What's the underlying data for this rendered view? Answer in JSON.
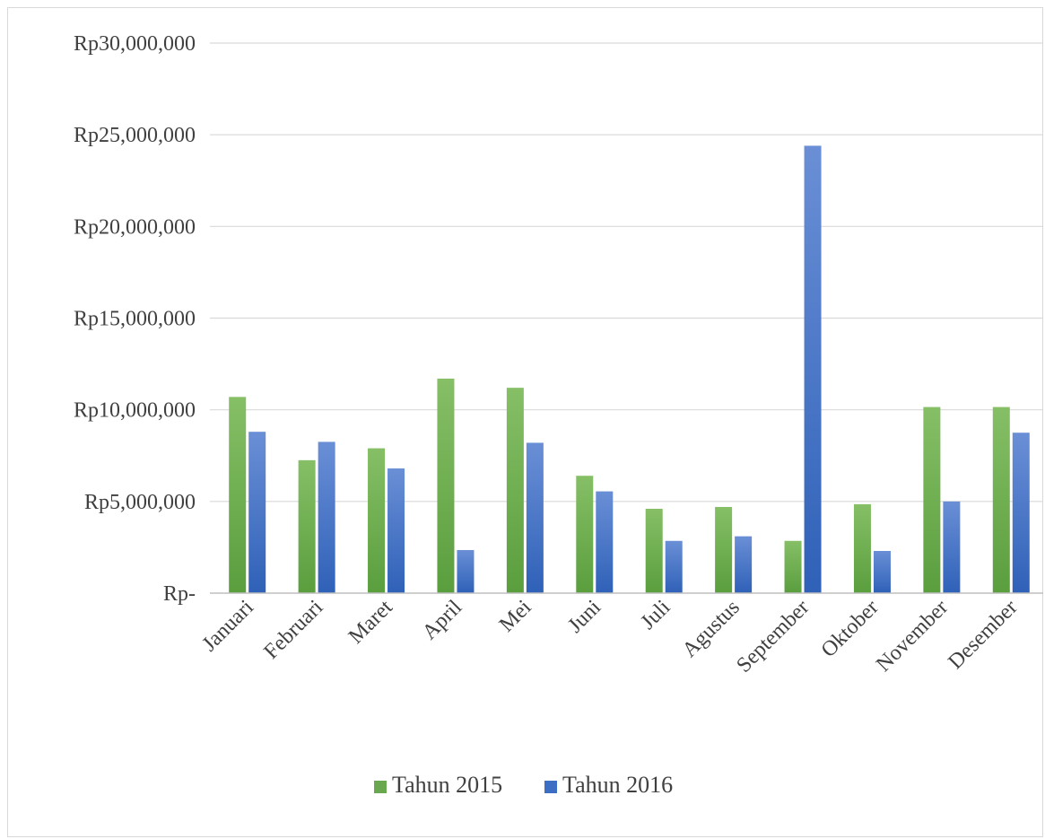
{
  "chart_data": {
    "type": "bar",
    "title": "",
    "xlabel": "",
    "ylabel": "",
    "ylim": [
      0,
      30000000
    ],
    "yticks": [
      0,
      5000000,
      10000000,
      15000000,
      20000000,
      25000000,
      30000000
    ],
    "ytick_labels": [
      "Rp-",
      "Rp5,000,000",
      "Rp10,000,000",
      "Rp15,000,000",
      "Rp20,000,000",
      "Rp25,000,000",
      "Rp30,000,000"
    ],
    "grid": true,
    "legend_position": "bottom",
    "categories": [
      "Januari",
      "Februari",
      "Maret",
      "April",
      "Mei",
      "Juni",
      "Juli",
      "Agustus",
      "September",
      "Oktober",
      "November",
      "Desember"
    ],
    "series": [
      {
        "name": "Tahun 2015",
        "color": "#6aa84f",
        "values": [
          10700000,
          7250000,
          7900000,
          11700000,
          11200000,
          6400000,
          4600000,
          4700000,
          2850000,
          4850000,
          10150000,
          10150000
        ]
      },
      {
        "name": "Tahun 2016",
        "color": "#3c6fc4",
        "values": [
          8800000,
          8250000,
          6800000,
          2350000,
          8200000,
          5550000,
          2850000,
          3100000,
          24400000,
          2300000,
          5000000,
          8750000
        ]
      }
    ]
  }
}
